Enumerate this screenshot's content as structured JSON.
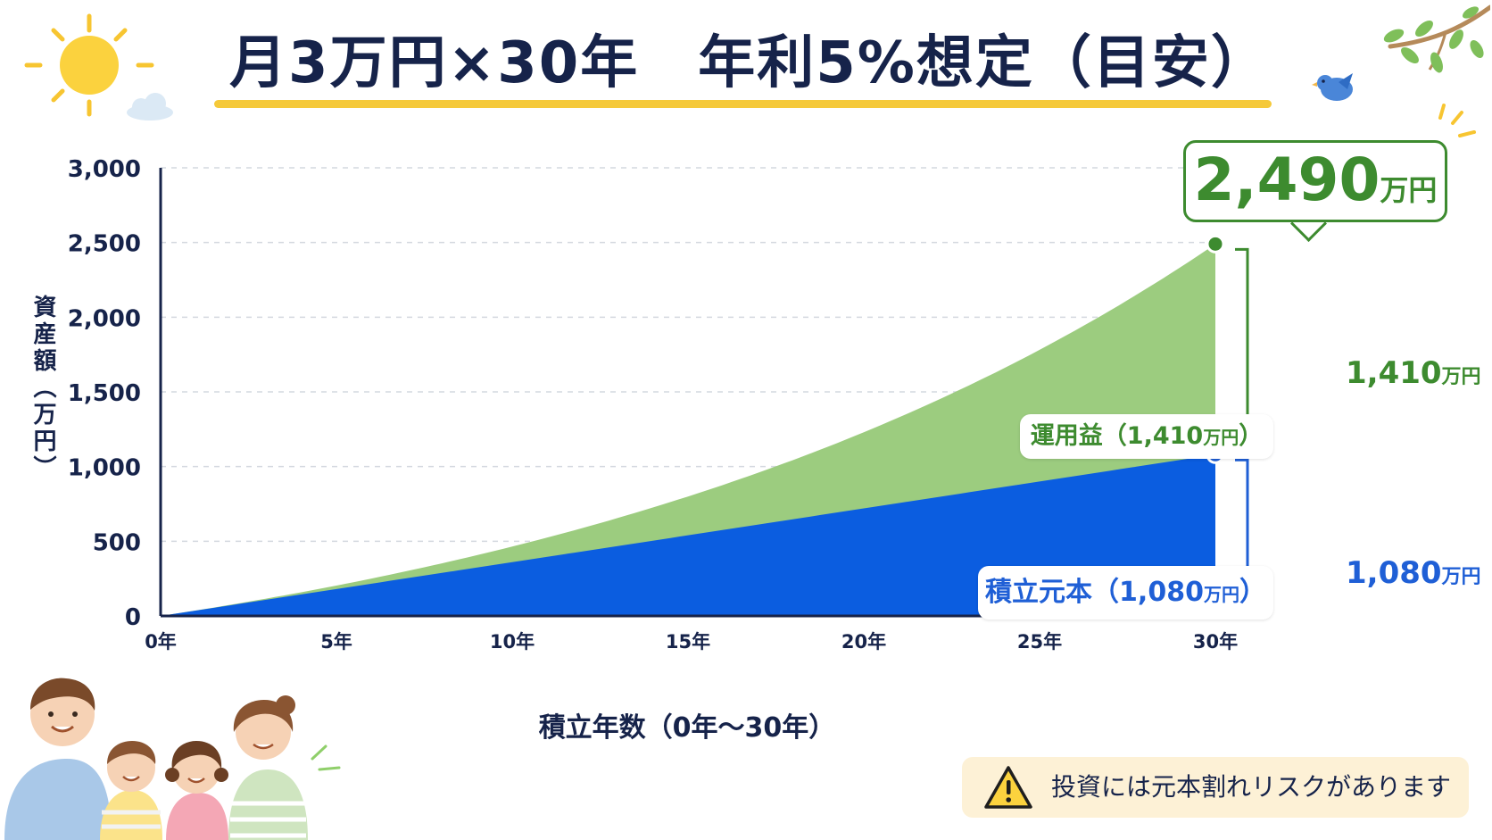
{
  "title": "月3万円×30年　年利5%想定（目安）",
  "chart_data": {
    "type": "area",
    "x": [
      0,
      5,
      10,
      15,
      20,
      25,
      30
    ],
    "x_tick_labels": [
      "0年",
      "5年",
      "10年",
      "15年",
      "20年",
      "25年",
      "30年"
    ],
    "xlabel": "積立年数（0年〜30年）",
    "ylabel": "資産額（万円）",
    "ylim": [
      0,
      3000
    ],
    "y_ticks": [
      0,
      500,
      1000,
      1500,
      2000,
      2500,
      3000
    ],
    "y_tick_labels": [
      "0",
      "500",
      "1,000",
      "1,500",
      "2,000",
      "2,500",
      "3,000"
    ],
    "grid": "horizontal dashed",
    "series": [
      {
        "name": "積立元本（1,080万円）",
        "color": "#0b5de0",
        "values": [
          0,
          180,
          360,
          540,
          720,
          900,
          1080
        ]
      },
      {
        "name": "運用益（1,410万円）",
        "color": "#9ccc7f",
        "values": [
          0,
          203,
          464,
          803,
          1233,
          1785,
          2490
        ]
      }
    ],
    "annotations": {
      "total_value": "2,490",
      "total_unit": "万円",
      "profit_value": "1,410",
      "profit_unit": "万円",
      "principal_value": "1,080",
      "principal_unit": "万円"
    }
  },
  "tags": {
    "profit_name": "運用益",
    "profit_value": "（1,410",
    "profit_unit": "万円",
    "profit_close": "）",
    "principal_name": "積立元本",
    "principal_value": "（1,080",
    "principal_unit": "万円",
    "principal_close": "）"
  },
  "notice": {
    "text": "投資には元本割れリスクがあります",
    "icon": "warning-icon"
  },
  "icons": [
    "sun-icon",
    "cloud-icon",
    "branch-icon",
    "bird-icon",
    "family-illustration"
  ],
  "colors": {
    "title": "#16234a",
    "underline": "#f5c93a",
    "green": "#3d8b2f",
    "blue": "#1f5fd6",
    "notice_bg": "#fdf1d6"
  }
}
